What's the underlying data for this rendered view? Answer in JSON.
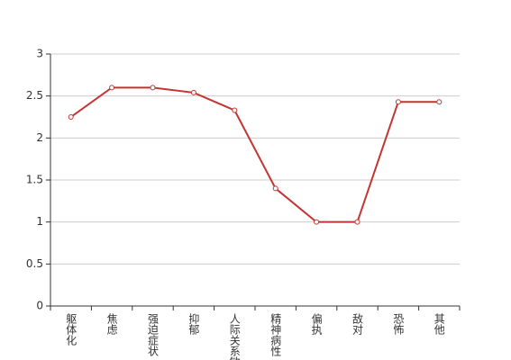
{
  "chart_data": {
    "type": "line",
    "categories": [
      "躯体化",
      "焦虑",
      "强迫症状",
      "抑郁",
      "人际关系敏感",
      "精神病性",
      "偏执",
      "敌对",
      "恐怖",
      "其他"
    ],
    "values": [
      2.25,
      2.6,
      2.6,
      2.54,
      2.33,
      1.4,
      1,
      1,
      2.43,
      2.43
    ],
    "color": "#c23531",
    "ylim": [
      0,
      3
    ],
    "yticks": [
      0,
      0.5,
      1,
      1.5,
      2,
      2.5,
      3
    ],
    "grid": true
  }
}
